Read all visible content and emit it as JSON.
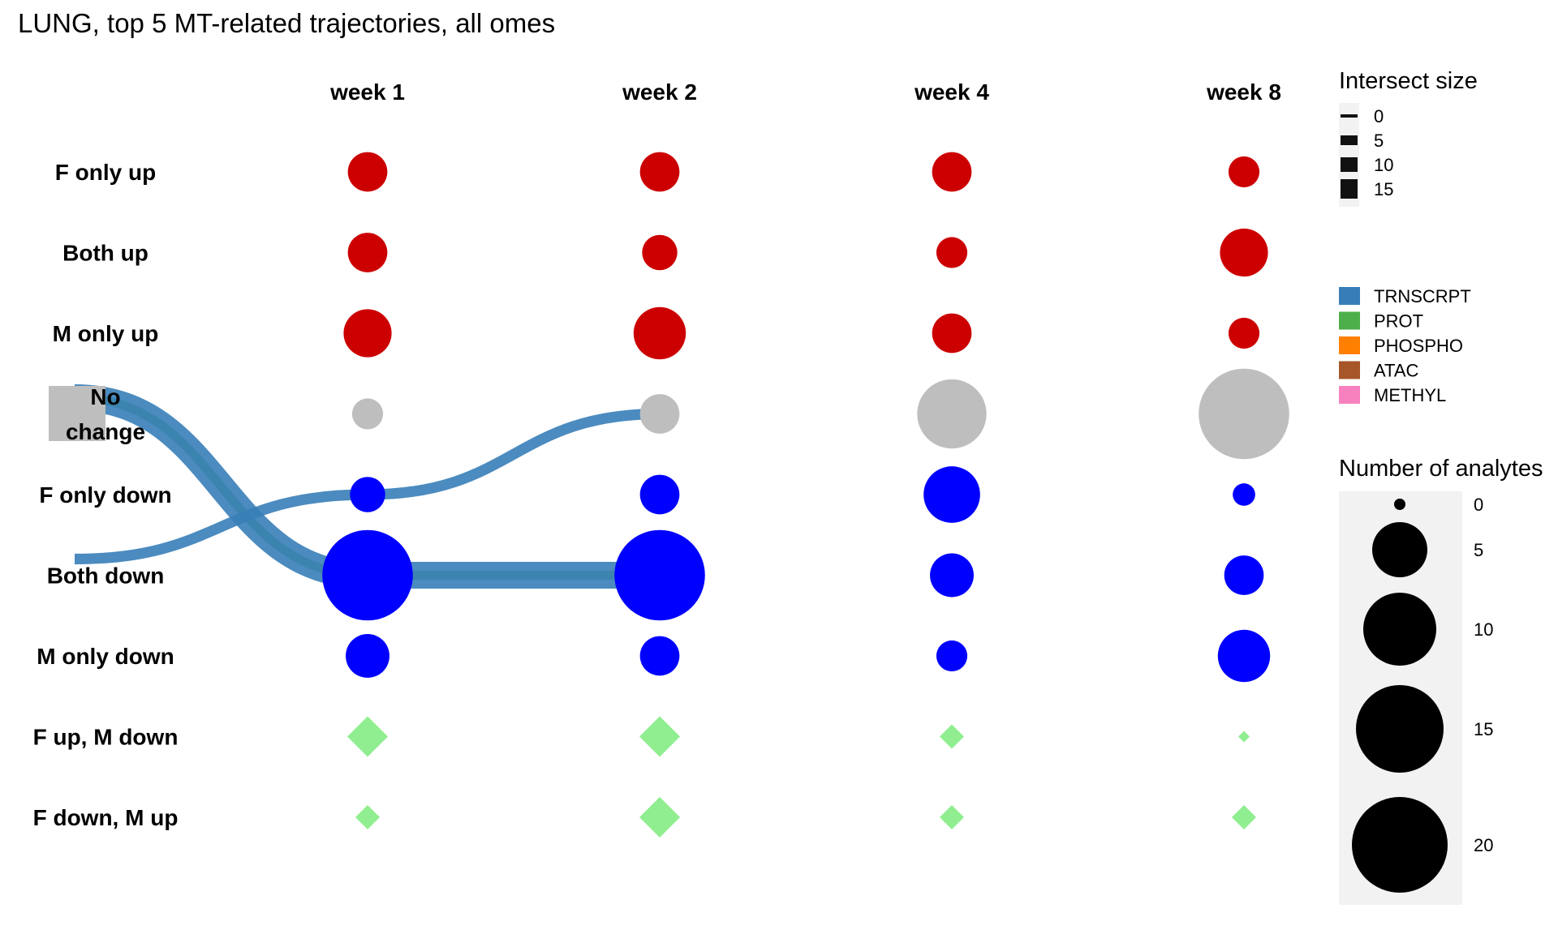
{
  "chart_data": {
    "type": "alluvial-dot-plot",
    "title": "LUNG, top 5 MT-related trajectories, all omes",
    "columns": [
      "week 1",
      "week 2",
      "week 4",
      "week 8"
    ],
    "rows": [
      "F only up",
      "Both up",
      "M only up",
      "No change",
      "F only down",
      "Both down",
      "M only down",
      "F up, M down",
      "F down, M up"
    ],
    "row_colors": [
      "#cc0000",
      "#cc0000",
      "#cc0000",
      "#bebebe",
      "#0000ff",
      "#0000ff",
      "#0000ff",
      "#90ee90",
      "#90ee90"
    ],
    "row_shapes": [
      "circle",
      "circle",
      "circle",
      "circle",
      "circle",
      "circle",
      "circle",
      "diamond",
      "diamond"
    ],
    "analyte_counts": [
      [
        7,
        7,
        7,
        5
      ],
      [
        7,
        6,
        5,
        9
      ],
      [
        9,
        10,
        7,
        5
      ],
      [
        5,
        7,
        14,
        19
      ],
      [
        6,
        7,
        11,
        3
      ],
      [
        19,
        19,
        8,
        7
      ],
      [
        8,
        7,
        5,
        10
      ],
      [
        2,
        2,
        1,
        0.2
      ],
      [
        1,
        2,
        1,
        1
      ]
    ],
    "trajectories": [
      {
        "ome": "PROT",
        "path": [
          "No change",
          "Both down",
          "Both down"
        ],
        "width": 5
      },
      {
        "ome": "TRNSCRPT",
        "path": [
          "No change",
          "Both down",
          "Both down"
        ],
        "width": 15
      },
      {
        "ome": "TRNSCRPT",
        "path": [
          "Both down",
          "F only down",
          "No change"
        ],
        "width": 6
      }
    ],
    "legend_intersect": {
      "title": "Intersect size",
      "levels": [
        "0",
        "5",
        "10",
        "15"
      ]
    },
    "legend_ome": {
      "items": [
        {
          "label": "TRNSCRPT",
          "color": "#377eb8"
        },
        {
          "label": "PROT",
          "color": "#4daf4a"
        },
        {
          "label": "PHOSPHO",
          "color": "#ff7f00"
        },
        {
          "label": "ATAC",
          "color": "#a65628"
        },
        {
          "label": "METHYL",
          "color": "#f781bf"
        }
      ]
    },
    "legend_analytes": {
      "title": "Number of analytes",
      "levels": [
        "0",
        "5",
        "10",
        "15",
        "20"
      ]
    }
  }
}
